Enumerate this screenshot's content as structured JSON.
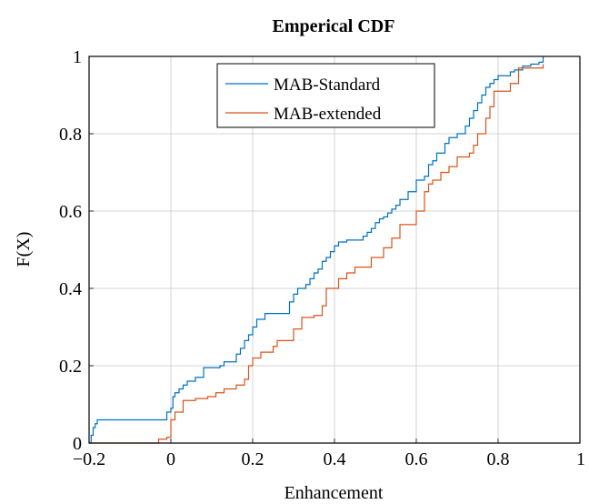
{
  "chart_data": {
    "type": "line",
    "title": "Emperical CDF",
    "xlabel": "Enhancement",
    "ylabel": "F(X)",
    "xlim": [
      -0.2,
      1
    ],
    "ylim": [
      0,
      1
    ],
    "x_ticks": [
      "−0.2",
      "0",
      "0.2",
      "0.4",
      "0.6",
      "0.8",
      "1"
    ],
    "y_ticks": [
      "0",
      "0.2",
      "0.4",
      "0.6",
      "0.8",
      "1"
    ],
    "grid": true,
    "legend_position": "top-center",
    "series": [
      {
        "name": "MAB-Standard",
        "color": "#0072BD",
        "step": true,
        "x": [
          -0.2,
          -0.195,
          -0.19,
          -0.185,
          -0.18,
          -0.02,
          -0.01,
          0.0,
          0.005,
          0.01,
          0.02,
          0.03,
          0.04,
          0.06,
          0.08,
          0.12,
          0.13,
          0.16,
          0.17,
          0.18,
          0.19,
          0.2,
          0.21,
          0.23,
          0.25,
          0.29,
          0.3,
          0.31,
          0.33,
          0.34,
          0.35,
          0.36,
          0.37,
          0.38,
          0.39,
          0.4,
          0.41,
          0.42,
          0.43,
          0.47,
          0.48,
          0.49,
          0.5,
          0.51,
          0.52,
          0.53,
          0.54,
          0.55,
          0.56,
          0.57,
          0.58,
          0.6,
          0.62,
          0.63,
          0.64,
          0.65,
          0.67,
          0.68,
          0.7,
          0.72,
          0.73,
          0.74,
          0.75,
          0.76,
          0.77,
          0.78,
          0.79,
          0.8,
          0.83,
          0.84,
          0.86,
          0.88,
          0.9,
          0.91
        ],
        "y": [
          0.0,
          0.02,
          0.04,
          0.05,
          0.06,
          0.06,
          0.08,
          0.09,
          0.12,
          0.13,
          0.14,
          0.15,
          0.16,
          0.17,
          0.195,
          0.2,
          0.21,
          0.23,
          0.245,
          0.265,
          0.28,
          0.3,
          0.32,
          0.335,
          0.335,
          0.365,
          0.385,
          0.4,
          0.41,
          0.425,
          0.44,
          0.45,
          0.47,
          0.48,
          0.495,
          0.51,
          0.52,
          0.52,
          0.525,
          0.535,
          0.545,
          0.555,
          0.57,
          0.58,
          0.585,
          0.595,
          0.605,
          0.615,
          0.63,
          0.63,
          0.65,
          0.68,
          0.69,
          0.72,
          0.73,
          0.75,
          0.775,
          0.79,
          0.8,
          0.82,
          0.84,
          0.86,
          0.88,
          0.9,
          0.92,
          0.93,
          0.94,
          0.95,
          0.96,
          0.965,
          0.975,
          0.98,
          0.985,
          1.0
        ]
      },
      {
        "name": "MAB-extended",
        "color": "#D95319",
        "step": true,
        "x": [
          -0.2,
          -0.03,
          -0.01,
          0.0,
          0.01,
          0.03,
          0.06,
          0.09,
          0.11,
          0.13,
          0.16,
          0.18,
          0.19,
          0.2,
          0.22,
          0.25,
          0.26,
          0.3,
          0.32,
          0.35,
          0.37,
          0.38,
          0.41,
          0.43,
          0.45,
          0.49,
          0.52,
          0.54,
          0.56,
          0.6,
          0.62,
          0.63,
          0.64,
          0.66,
          0.68,
          0.7,
          0.73,
          0.74,
          0.75,
          0.77,
          0.78,
          0.79,
          0.83,
          0.85,
          0.91
        ],
        "y": [
          0.0,
          0.01,
          0.015,
          0.06,
          0.08,
          0.11,
          0.115,
          0.12,
          0.13,
          0.14,
          0.15,
          0.165,
          0.2,
          0.22,
          0.235,
          0.25,
          0.265,
          0.295,
          0.325,
          0.33,
          0.355,
          0.4,
          0.425,
          0.44,
          0.455,
          0.48,
          0.505,
          0.53,
          0.565,
          0.6,
          0.65,
          0.67,
          0.68,
          0.7,
          0.715,
          0.74,
          0.75,
          0.77,
          0.8,
          0.84,
          0.87,
          0.91,
          0.93,
          0.97,
          0.98
        ]
      }
    ]
  }
}
